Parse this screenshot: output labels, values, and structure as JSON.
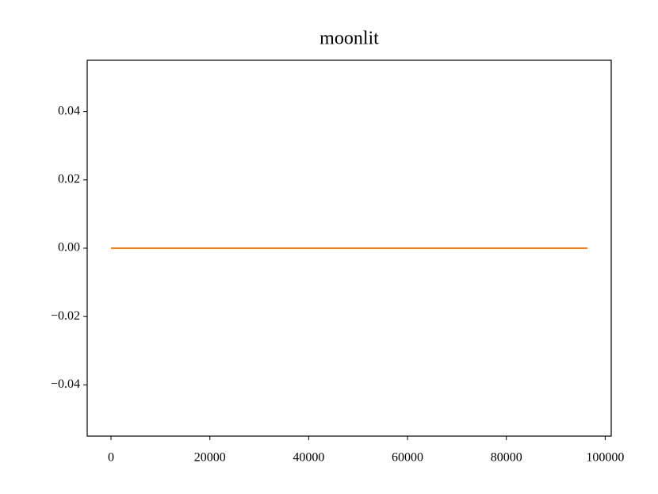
{
  "chart_data": {
    "type": "line",
    "title": "moonlit",
    "x": [
      0,
      96400
    ],
    "values": [
      0,
      0
    ],
    "color": "#ff7f0e",
    "xlim": [
      -4820,
      101220
    ],
    "xticks": [
      0,
      20000,
      40000,
      60000,
      80000,
      100000
    ],
    "ylim": [
      -0.055,
      0.055
    ],
    "yticks": [
      {
        "value": -0.04,
        "label": "−0.04"
      },
      {
        "value": -0.02,
        "label": "−0.02"
      },
      {
        "value": 0,
        "label": "0.00"
      },
      0.02,
      0.04
    ],
    "grid": false
  }
}
